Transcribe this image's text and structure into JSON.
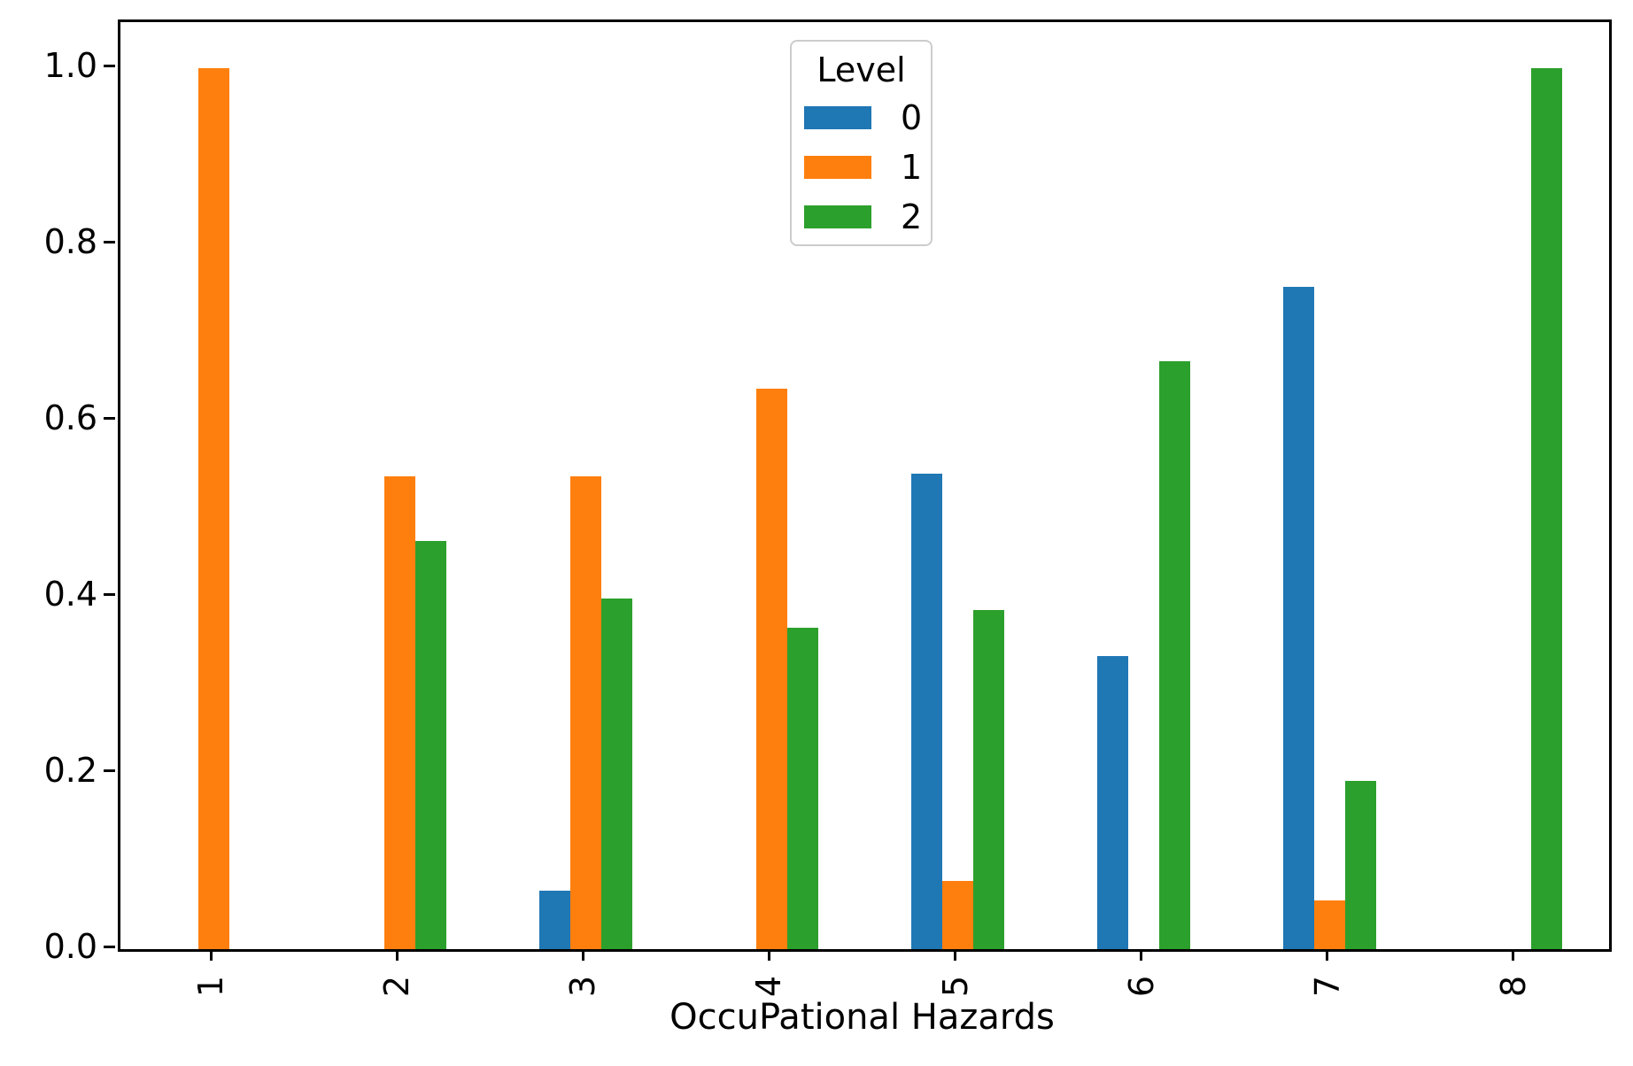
{
  "chart_data": {
    "type": "bar",
    "title": "",
    "xlabel": "OccuPational Hazards",
    "ylabel": "",
    "categories": [
      "1",
      "2",
      "3",
      "4",
      "5",
      "6",
      "7",
      "8"
    ],
    "series": [
      {
        "name": "0",
        "color": "#1f77b4",
        "values": [
          0,
          0,
          0.066,
          0,
          0.54,
          0.333,
          0.752,
          0
        ]
      },
      {
        "name": "1",
        "color": "#ff7f0e",
        "values": [
          1.0,
          0.537,
          0.537,
          0.636,
          0.077,
          0,
          0.055,
          0
        ]
      },
      {
        "name": "2",
        "color": "#2ca02c",
        "values": [
          0,
          0.463,
          0.398,
          0.365,
          0.385,
          0.667,
          0.191,
          1.0
        ]
      }
    ],
    "ylim": [
      0.0,
      1.05
    ],
    "yticks": [
      0.0,
      0.2,
      0.4,
      0.6,
      0.8,
      1.0
    ],
    "ytick_labels": [
      "0.0",
      "0.2",
      "0.4",
      "0.6",
      "0.8",
      "1.0"
    ],
    "x_tick_rotation": 90,
    "grid": "off",
    "legend": {
      "title": "Level",
      "position": "upper center",
      "entries": [
        "0",
        "1",
        "2"
      ]
    }
  }
}
